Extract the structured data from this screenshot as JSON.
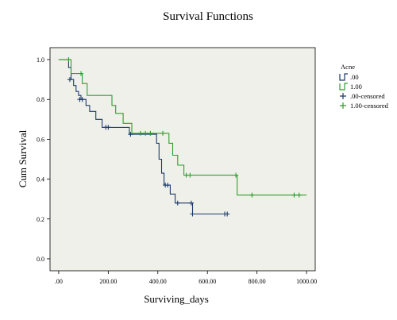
{
  "chart_data": {
    "type": "line",
    "subtype": "kaplan-meier-step",
    "title": "Survival Functions",
    "xlabel": "Surviving_days",
    "ylabel": "Cum Survival",
    "xlim": [
      -35,
      1035
    ],
    "ylim": [
      -0.06,
      1.06
    ],
    "x_ticks": [
      0,
      200,
      400,
      600,
      800,
      1000
    ],
    "x_tick_labels": [
      ".00",
      "200.00",
      "400.00",
      "600.00",
      "800.00",
      "1000.00"
    ],
    "y_ticks": [
      0,
      0.2,
      0.4,
      0.6,
      0.8,
      1.0
    ],
    "y_tick_labels": [
      "0.0",
      "0.2",
      "0.4",
      "0.6",
      "0.8",
      "1.0"
    ],
    "grid": false,
    "plot_background": "#f0f0ea",
    "legend": {
      "title": "Acne",
      "position": "right",
      "entries": [
        ".00",
        "1.00",
        ".00-censored",
        "1.00-censored"
      ]
    },
    "series": [
      {
        "name": ".00",
        "color": "#1a3a6b",
        "steps": [
          [
            0,
            1.0
          ],
          [
            40,
            0.96
          ],
          [
            50,
            0.9
          ],
          [
            60,
            0.87
          ],
          [
            70,
            0.84
          ],
          [
            80,
            0.82
          ],
          [
            90,
            0.8
          ],
          [
            110,
            0.77
          ],
          [
            125,
            0.74
          ],
          [
            150,
            0.7
          ],
          [
            175,
            0.66
          ],
          [
            285,
            0.625
          ],
          [
            395,
            0.58
          ],
          [
            405,
            0.5
          ],
          [
            415,
            0.43
          ],
          [
            425,
            0.37
          ],
          [
            450,
            0.325
          ],
          [
            470,
            0.28
          ],
          [
            540,
            0.225
          ],
          [
            680,
            0.225
          ]
        ],
        "censored": [
          [
            45,
            0.9
          ],
          [
            85,
            0.8
          ],
          [
            95,
            0.8
          ],
          [
            190,
            0.66
          ],
          [
            200,
            0.66
          ],
          [
            290,
            0.625
          ],
          [
            430,
            0.37
          ],
          [
            440,
            0.37
          ],
          [
            480,
            0.28
          ],
          [
            535,
            0.28
          ],
          [
            540,
            0.225
          ],
          [
            670,
            0.225
          ],
          [
            680,
            0.225
          ]
        ]
      },
      {
        "name": "1.00",
        "color": "#2e9e2e",
        "steps": [
          [
            0,
            1.0
          ],
          [
            50,
            0.93
          ],
          [
            95,
            0.88
          ],
          [
            115,
            0.82
          ],
          [
            215,
            0.77
          ],
          [
            230,
            0.73
          ],
          [
            260,
            0.68
          ],
          [
            295,
            0.63
          ],
          [
            445,
            0.58
          ],
          [
            460,
            0.52
          ],
          [
            480,
            0.47
          ],
          [
            505,
            0.42
          ],
          [
            720,
            0.32
          ],
          [
            1000,
            0.32
          ]
        ],
        "censored": [
          [
            40,
            1.0
          ],
          [
            90,
            0.93
          ],
          [
            330,
            0.63
          ],
          [
            350,
            0.63
          ],
          [
            370,
            0.63
          ],
          [
            420,
            0.63
          ],
          [
            515,
            0.42
          ],
          [
            530,
            0.42
          ],
          [
            715,
            0.42
          ],
          [
            780,
            0.32
          ],
          [
            950,
            0.32
          ],
          [
            970,
            0.32
          ]
        ]
      }
    ]
  }
}
